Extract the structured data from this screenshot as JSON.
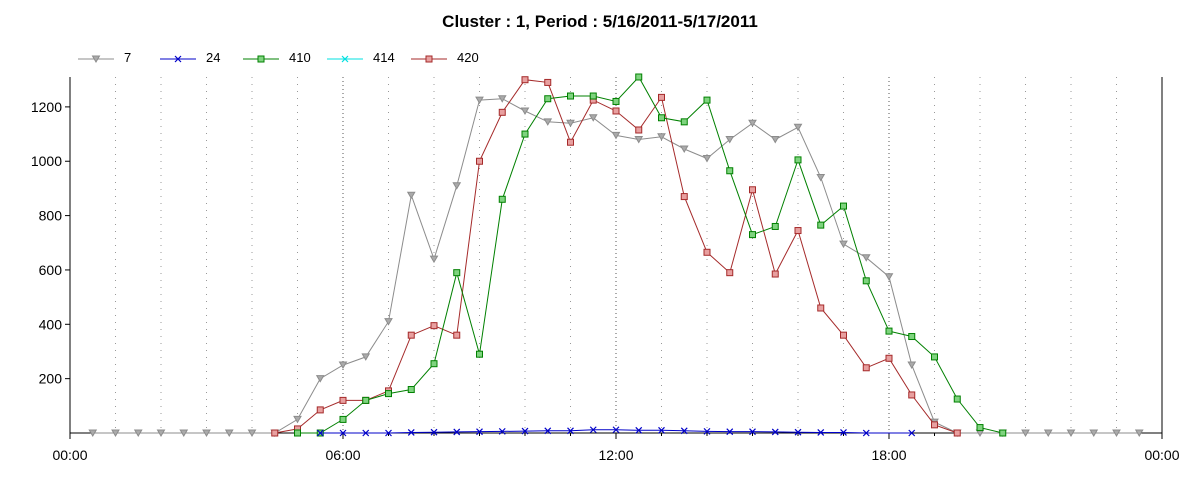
{
  "chart_data": {
    "type": "line",
    "title": "Cluster : 1, Period : 5/16/2011-5/17/2011",
    "xlabel": "",
    "ylabel": "",
    "x_ticks": [
      "00:00",
      "06:00",
      "12:00",
      "18:00",
      "00:00"
    ],
    "y_ticks": [
      200,
      400,
      600,
      800,
      1000,
      1200
    ],
    "xlim_hours": [
      0,
      24
    ],
    "ylim": [
      0,
      1310
    ],
    "grid": "dotted vertical",
    "legend_position": "top-left",
    "series": [
      {
        "name": "7",
        "color": "#8c8c8c",
        "marker": "triangle-down",
        "x": [
          0.5,
          1,
          1.5,
          2,
          2.5,
          3,
          3.5,
          4,
          4.5,
          5,
          5.5,
          6,
          6.5,
          7,
          7.5,
          8,
          8.5,
          9,
          9.5,
          10,
          10.5,
          11,
          11.5,
          12,
          12.5,
          13,
          13.5,
          14,
          14.5,
          15,
          15.5,
          16,
          16.5,
          17,
          17.5,
          18,
          18.5,
          19,
          19.5,
          20,
          20.5,
          21,
          21.5,
          22,
          22.5,
          23,
          23.5
        ],
        "y": [
          0,
          0,
          0,
          0,
          0,
          0,
          0,
          0,
          0,
          50,
          200,
          250,
          280,
          410,
          875,
          640,
          910,
          1225,
          1230,
          1185,
          1145,
          1140,
          1160,
          1095,
          1080,
          1090,
          1045,
          1010,
          1080,
          1140,
          1080,
          1125,
          940,
          695,
          645,
          575,
          250,
          40,
          0,
          0,
          0,
          0,
          0,
          0,
          0,
          0,
          0
        ]
      },
      {
        "name": "24",
        "color": "#0000c8",
        "marker": "x",
        "x": [
          5.5,
          6,
          6.5,
          7,
          7.5,
          8,
          8.5,
          9,
          9.5,
          10,
          10.5,
          11,
          11.5,
          12,
          12.5,
          13,
          13.5,
          14,
          14.5,
          15,
          15.5,
          16,
          16.5,
          17,
          17.5,
          18.5
        ],
        "y": [
          0,
          0,
          0,
          0,
          2,
          3,
          4,
          5,
          6,
          7,
          8,
          8,
          12,
          12,
          10,
          10,
          8,
          6,
          5,
          5,
          4,
          3,
          2,
          2,
          0,
          0
        ]
      },
      {
        "name": "410",
        "color": "#008000",
        "marker": "square",
        "x": [
          5,
          5.5,
          6,
          6.5,
          7,
          7.5,
          8,
          8.5,
          9,
          9.5,
          10,
          10.5,
          11,
          11.5,
          12,
          12.5,
          13,
          13.5,
          14,
          14.5,
          15,
          15.5,
          16,
          16.5,
          17,
          17.5,
          18,
          18.5,
          19,
          19.5,
          20,
          20.5
        ],
        "y": [
          0,
          0,
          50,
          120,
          145,
          160,
          255,
          590,
          290,
          860,
          1100,
          1230,
          1240,
          1240,
          1220,
          1310,
          1160,
          1145,
          1225,
          965,
          730,
          760,
          1005,
          765,
          835,
          560,
          375,
          355,
          280,
          125,
          20,
          0
        ]
      },
      {
        "name": "414",
        "color": "#00e0e0",
        "marker": "x",
        "x": [],
        "y": []
      },
      {
        "name": "420",
        "color": "#a52a2a",
        "marker": "square",
        "x": [
          4.5,
          5,
          5.5,
          6,
          6.5,
          7,
          7.5,
          8,
          8.5,
          9,
          9.5,
          10,
          10.5,
          11,
          11.5,
          12,
          12.5,
          13,
          13.5,
          14,
          14.5,
          15,
          15.5,
          16,
          16.5,
          17,
          17.5,
          18,
          18.5,
          19,
          19.5
        ],
        "y": [
          0,
          15,
          85,
          120,
          120,
          155,
          360,
          395,
          360,
          1000,
          1180,
          1300,
          1290,
          1070,
          1225,
          1185,
          1115,
          1235,
          870,
          665,
          590,
          895,
          585,
          745,
          460,
          360,
          240,
          275,
          140,
          30,
          0
        ]
      }
    ]
  }
}
